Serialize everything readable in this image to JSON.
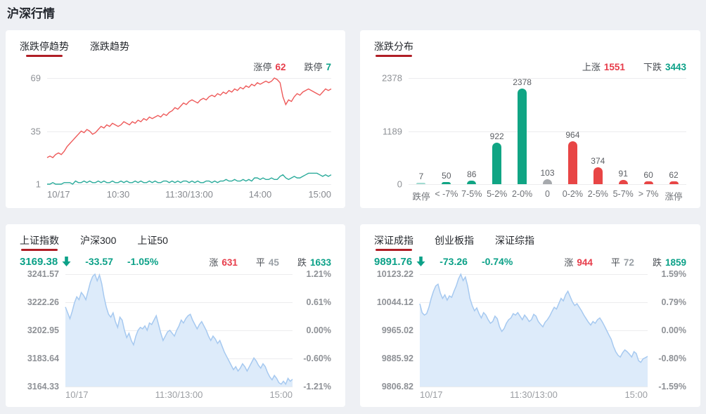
{
  "page": {
    "title": "沪深行情"
  },
  "colors": {
    "accent_red": "#e73c4a",
    "accent_green": "#0ca188",
    "tab_underline": "#b01e26",
    "area_line": "#a6c9f0",
    "area_fill": "#ddebfa",
    "line_up": "#ee5a5a",
    "line_down": "#2bab9b",
    "bar_teal": "#10a584",
    "bar_teal_light": "#a2dbd1",
    "bar_gray": "#a6a9ad",
    "bar_red": "#e84545"
  },
  "panels": {
    "limit_trend": {
      "tabs": [
        {
          "label": "涨跌停趋势",
          "name": "tab-limit-updown-trend",
          "active": true
        },
        {
          "label": "涨跌趋势",
          "name": "tab-updown-trend",
          "active": false
        }
      ],
      "stats": [
        {
          "label": "涨停",
          "value": "62",
          "color": "red",
          "name": "stat-limit-up"
        },
        {
          "label": "跌停",
          "value": "7",
          "color": "green",
          "name": "stat-limit-down"
        }
      ]
    },
    "distribution": {
      "tabs": [
        {
          "label": "涨跌分布",
          "name": "tab-updown-distribution",
          "active": true
        }
      ],
      "stats": [
        {
          "label": "上涨",
          "value": "1551",
          "color": "red",
          "name": "stat-advancers"
        },
        {
          "label": "下跌",
          "value": "3443",
          "color": "green",
          "name": "stat-decliners"
        }
      ]
    },
    "sh_index": {
      "tabs": [
        {
          "label": "上证指数",
          "name": "tab-shanghai-composite",
          "active": true
        },
        {
          "label": "沪深300",
          "name": "tab-csi-300",
          "active": false
        },
        {
          "label": "上证50",
          "name": "tab-sse-50",
          "active": false
        }
      ],
      "quote": {
        "value": "3169.38",
        "arrow": "down",
        "change": "-33.57",
        "pct": "-1.05%",
        "color": "green"
      },
      "stats": [
        {
          "label": "涨",
          "value": "631",
          "color": "red",
          "name": "stat-up-count"
        },
        {
          "label": "平",
          "value": "45",
          "color": "gray",
          "name": "stat-flat-count"
        },
        {
          "label": "跌",
          "value": "1633",
          "color": "green",
          "name": "stat-down-count"
        }
      ]
    },
    "sz_index": {
      "tabs": [
        {
          "label": "深证成指",
          "name": "tab-szse-component",
          "active": true
        },
        {
          "label": "创业板指",
          "name": "tab-chinext",
          "active": false
        },
        {
          "label": "深证综指",
          "name": "tab-szse-composite",
          "active": false
        }
      ],
      "quote": {
        "value": "9891.76",
        "arrow": "down",
        "change": "-73.26",
        "pct": "-0.74%",
        "color": "green"
      },
      "stats": [
        {
          "label": "涨",
          "value": "944",
          "color": "red",
          "name": "stat-up-count"
        },
        {
          "label": "平",
          "value": "72",
          "color": "gray",
          "name": "stat-flat-count"
        },
        {
          "label": "跌",
          "value": "1859",
          "color": "green",
          "name": "stat-down-count"
        }
      ]
    }
  },
  "chart_data": {
    "limit_trend": {
      "type": "line",
      "title": "涨跌停趋势",
      "ylim": [
        1,
        69
      ],
      "yticks": [
        "69",
        "35",
        "1"
      ],
      "xticks": [
        "10/17",
        "10:30",
        "11:30/13:00",
        "14:00",
        "15:00"
      ],
      "grid": true,
      "series": [
        {
          "name": "涨停",
          "color": "#ee5a5a",
          "values": [
            18,
            19,
            18,
            20,
            21,
            20,
            22,
            25,
            27,
            29,
            31,
            33,
            35,
            34,
            36,
            35,
            33,
            34,
            36,
            38,
            37,
            39,
            38,
            40,
            39,
            38,
            39,
            41,
            40,
            39,
            41,
            40,
            42,
            41,
            43,
            42,
            44,
            43,
            44,
            45,
            44,
            46,
            45,
            47,
            48,
            50,
            49,
            51,
            53,
            52,
            54,
            55,
            54,
            53,
            55,
            56,
            55,
            57,
            58,
            57,
            59,
            58,
            60,
            59,
            61,
            60,
            62,
            61,
            63,
            62,
            64,
            63,
            65,
            64,
            66,
            65,
            66,
            67,
            66,
            67,
            69,
            68,
            66,
            57,
            52,
            55,
            54,
            57,
            59,
            58,
            60,
            61,
            62,
            61,
            60,
            59,
            58,
            60,
            62,
            61,
            62
          ]
        },
        {
          "name": "跌停",
          "color": "#2bab9b",
          "values": [
            1,
            1,
            2,
            1,
            1,
            1,
            2,
            2,
            2,
            1,
            3,
            2,
            2,
            3,
            2,
            3,
            2,
            2,
            3,
            2,
            3,
            2,
            2,
            3,
            2,
            2,
            3,
            2,
            3,
            2,
            2,
            3,
            2,
            3,
            2,
            2,
            3,
            2,
            3,
            2,
            2,
            3,
            3,
            2,
            3,
            2,
            3,
            2,
            3,
            3,
            2,
            3,
            2,
            3,
            2,
            2,
            3,
            3,
            2,
            3,
            2,
            3,
            3,
            4,
            3,
            3,
            4,
            3,
            3,
            4,
            3,
            4,
            3,
            5,
            5,
            4,
            5,
            4,
            4,
            5,
            4,
            4,
            6,
            7,
            5,
            4,
            5,
            6,
            5,
            5,
            6,
            7,
            8,
            8,
            8,
            8,
            7,
            6,
            7,
            6,
            7
          ]
        }
      ]
    },
    "distribution": {
      "type": "bar",
      "title": "涨跌分布",
      "ylim": [
        0,
        2378
      ],
      "yticks": [
        "2378",
        "1189",
        "0"
      ],
      "categories": [
        "跌停",
        "< -7%",
        "7-5%",
        "5-2%",
        "2-0%",
        "0",
        "0-2%",
        "2-5%",
        "5-7%",
        "> 7%",
        "涨停"
      ],
      "values": [
        7,
        50,
        86,
        922,
        2378,
        103,
        964,
        374,
        91,
        60,
        62
      ],
      "bar_colors": [
        "#a2dbd1",
        "#10a584",
        "#10a584",
        "#10a584",
        "#10a584",
        "#a6a9ad",
        "#e84545",
        "#e84545",
        "#e84545",
        "#e84545",
        "#e84545"
      ],
      "grid": true,
      "legend_position": "none"
    },
    "sh_index": {
      "type": "area",
      "title": "上证指数",
      "ylim": [
        3164.33,
        3241.57
      ],
      "yticks_left": [
        "3241.57",
        "3222.26",
        "3202.95",
        "3183.64",
        "3164.33"
      ],
      "yticks_right": [
        "1.21%",
        "0.61%",
        "0.00%",
        "-0.60%",
        "-1.21%"
      ],
      "tick_colors": [
        "red",
        "red",
        "gray",
        "green",
        "green"
      ],
      "xticks": [
        "10/17",
        "11:30/13:00",
        "15:00"
      ],
      "line_color": "#a6c9f0",
      "fill_color": "#ddebfa",
      "values": [
        3219,
        3215,
        3211,
        3216,
        3222,
        3226,
        3224,
        3229,
        3227,
        3224,
        3230,
        3236,
        3240,
        3241.5,
        3237,
        3241,
        3235,
        3226,
        3219,
        3214,
        3212,
        3215,
        3209,
        3205,
        3212,
        3210,
        3203,
        3198,
        3201,
        3196,
        3193,
        3199,
        3203,
        3205,
        3204,
        3206,
        3203,
        3208,
        3207,
        3210,
        3213,
        3207,
        3201,
        3196,
        3199,
        3202,
        3203,
        3201,
        3199,
        3203,
        3206,
        3210,
        3208,
        3211,
        3213,
        3214,
        3210,
        3207,
        3204,
        3207,
        3209,
        3206,
        3203,
        3199,
        3196,
        3199,
        3197,
        3194,
        3196,
        3192,
        3188,
        3185,
        3182,
        3179,
        3176,
        3178,
        3175,
        3177,
        3180,
        3178,
        3175,
        3178,
        3181,
        3184,
        3182,
        3179,
        3177,
        3180,
        3178,
        3174,
        3171,
        3169,
        3172,
        3170,
        3167,
        3166,
        3168,
        3166,
        3170,
        3168,
        3169.38
      ]
    },
    "sz_index": {
      "type": "area",
      "title": "深证成指",
      "ylim": [
        9806.82,
        10123.22
      ],
      "yticks_left": [
        "10123.22",
        "10044.12",
        "9965.02",
        "9885.92",
        "9806.82"
      ],
      "yticks_right": [
        "1.59%",
        "0.79%",
        "0.00%",
        "-0.80%",
        "-1.59%"
      ],
      "tick_colors": [
        "red",
        "red",
        "gray",
        "green",
        "green"
      ],
      "xticks": [
        "10/17",
        "11:30/13:00",
        "15:00"
      ],
      "line_color": "#a6c9f0",
      "fill_color": "#ddebfa",
      "values": [
        10040,
        10015,
        10008,
        10012,
        10030,
        10055,
        10075,
        10090,
        10095,
        10070,
        10055,
        10065,
        10050,
        10062,
        10058,
        10075,
        10090,
        10110,
        10123,
        10105,
        10115,
        10090,
        10055,
        10035,
        10020,
        10028,
        10012,
        10000,
        10015,
        10008,
        9995,
        9985,
        9990,
        10005,
        9998,
        9975,
        9962,
        9970,
        9985,
        9995,
        10000,
        10012,
        10008,
        10015,
        10005,
        9995,
        10008,
        10000,
        9990,
        9995,
        10010,
        10005,
        9990,
        9982,
        9975,
        9988,
        9995,
        10005,
        10018,
        10030,
        10025,
        10040,
        10055,
        10048,
        10065,
        10075,
        10060,
        10045,
        10035,
        10040,
        10030,
        10020,
        10008,
        9998,
        9988,
        9980,
        9990,
        9985,
        9995,
        10000,
        9990,
        9978,
        9965,
        9952,
        9940,
        9920,
        9905,
        9895,
        9890,
        9902,
        9910,
        9905,
        9898,
        9890,
        9905,
        9900,
        9880,
        9875,
        9885,
        9888,
        9891.76
      ]
    }
  }
}
